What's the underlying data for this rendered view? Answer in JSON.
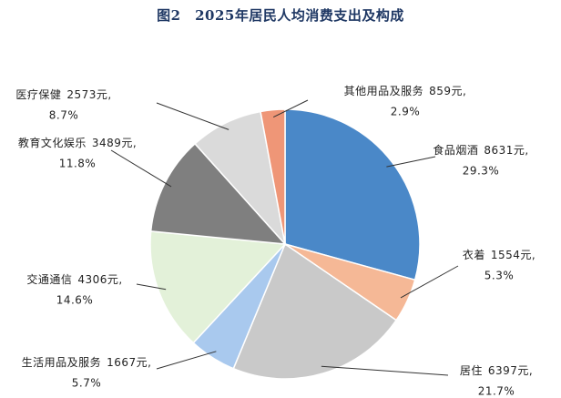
{
  "chart_data": {
    "type": "pie",
    "title": "图2　2025年居民人均消费支出及构成",
    "categories": [
      "食品烟酒",
      "衣着",
      "居住",
      "生活用品及服务",
      "交通通信",
      "教育文化娱乐",
      "医疗保健",
      "其他用品及服务"
    ],
    "values": [
      8631,
      1554,
      6397,
      1667,
      4306,
      3489,
      2573,
      859
    ],
    "value_labels": [
      "8631元,",
      "1554元,",
      "6397元,",
      "1667元,",
      "4306元,",
      "3489元,",
      "2573元,",
      "859元,"
    ],
    "percentages": [
      29.3,
      5.3,
      21.7,
      5.7,
      14.6,
      11.8,
      8.7,
      2.9
    ],
    "percentage_labels": [
      "29.3%",
      "5.3%",
      "21.7%",
      "5.7%",
      "14.6%",
      "11.8%",
      "8.7%",
      "2.9%"
    ],
    "colors": [
      "#4a88c8",
      "#f5b896",
      "#c9c9c9",
      "#a9c9ee",
      "#e3f1d9",
      "#7f7f7f",
      "#dadada",
      "#ef9677"
    ]
  }
}
